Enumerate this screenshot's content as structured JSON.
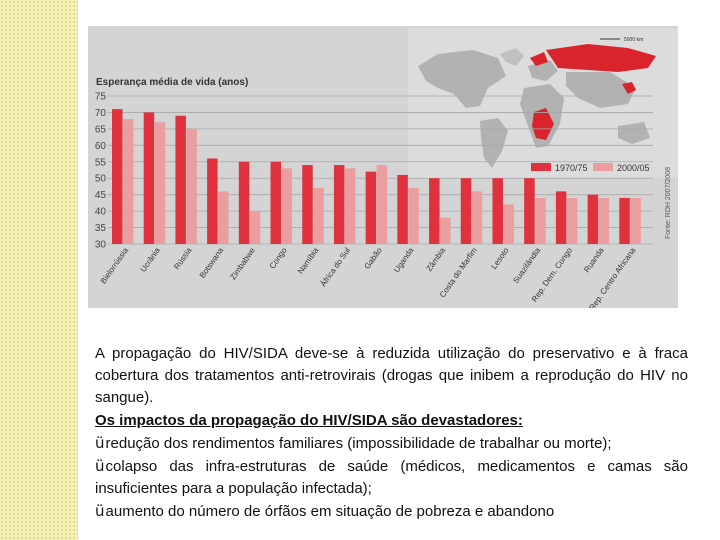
{
  "chart_data": {
    "type": "bar",
    "title": "Esperança média de vida (anos)",
    "categories": [
      "Bielorrússia",
      "Ucrânia",
      "Rússia",
      "Botswana",
      "Zimbabwe",
      "Congo",
      "Namíbia",
      "África do Sul",
      "Gabão",
      "Uganda",
      "Zâmbia",
      "Costa do Marfim",
      "Lesoto",
      "Suazilândia",
      "Rep. Dem. Congo",
      "Ruanda",
      "Rep. Centro Africana"
    ],
    "series": [
      {
        "name": "1970/75",
        "color": "#e0313f",
        "values": [
          71,
          70,
          69,
          56,
          55,
          55,
          54,
          54,
          52,
          51,
          50,
          50,
          50,
          50,
          46,
          45,
          44
        ]
      },
      {
        "name": "2000/05",
        "color": "#eb9ea0",
        "values": [
          68,
          67,
          65,
          46,
          40,
          53,
          47,
          53,
          54,
          47,
          38,
          46,
          42,
          44,
          44,
          44,
          44
        ]
      }
    ],
    "yticks": [
      30,
      35,
      40,
      45,
      50,
      55,
      60,
      65,
      70,
      75
    ],
    "ylim": [
      30,
      75
    ],
    "legend_position": "top-right",
    "source": "Fonte: RDH 2007/2008",
    "map_scale_label": "5000 km"
  },
  "text": {
    "paragraph": "A propagação do HIV/SIDA deve-se à reduzida utilização do preservativo e à fraca cobertura dos tratamentos anti-retrovirais (drogas que inibem a reprodução do HIV no sangue).",
    "heading": "Os impactos da propagação do HIV/SIDA são devastadores:",
    "check_symbol": "ü",
    "items": [
      "redução dos rendimentos familiares (impossibilidade de trabalhar ou morte);",
      "colapso das infra-estruturas de saúde (médicos, medicamentos e camas são insuficientes para a população infectada);",
      "aumento do número de órfãos em situação de pobreza e abandono"
    ]
  }
}
